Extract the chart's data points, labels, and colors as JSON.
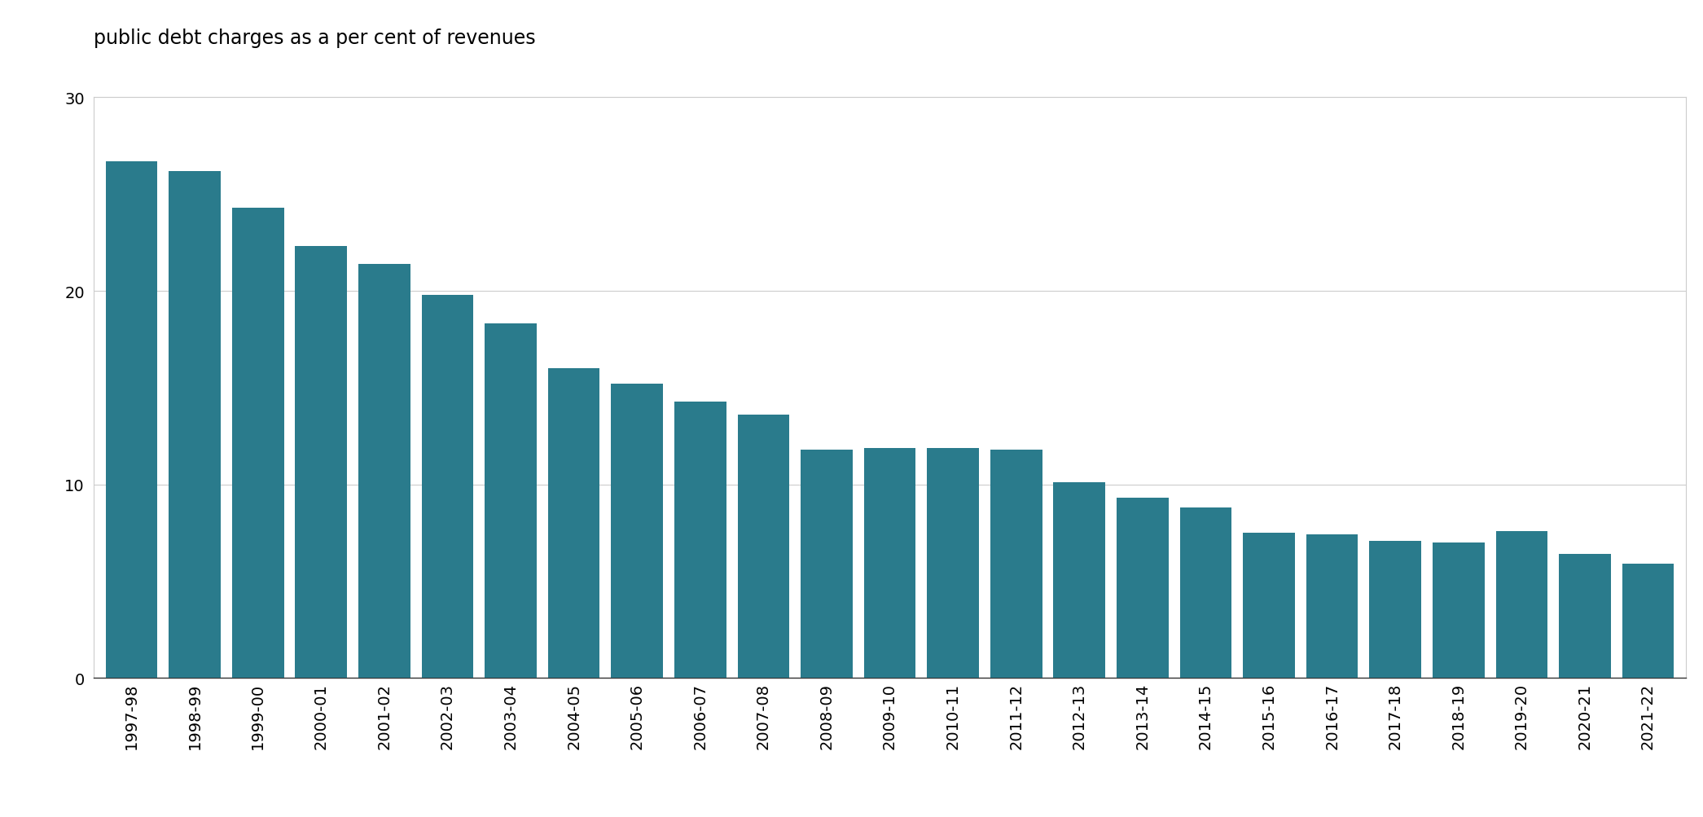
{
  "categories": [
    "1997-98",
    "1998-99",
    "1999-00",
    "2000-01",
    "2001-02",
    "2002-03",
    "2003-04",
    "2004-05",
    "2005-06",
    "2006-07",
    "2007-08",
    "2008-09",
    "2009-10",
    "2010-11",
    "2011-12",
    "2012-13",
    "2013-14",
    "2014-15",
    "2015-16",
    "2016-17",
    "2017-18",
    "2018-19",
    "2019-20",
    "2020-21",
    "2021-22"
  ],
  "values": [
    26.7,
    26.2,
    24.3,
    22.3,
    21.4,
    19.8,
    18.3,
    16.0,
    15.2,
    14.3,
    13.6,
    11.8,
    11.9,
    11.9,
    11.8,
    10.1,
    9.3,
    8.8,
    7.5,
    7.4,
    7.1,
    7.0,
    7.6,
    6.4,
    5.9
  ],
  "bar_color": "#2a7b8c",
  "title": "public debt charges as a per cent of revenues",
  "title_fontsize": 17,
  "ylim": [
    0,
    30
  ],
  "yticks": [
    0,
    10,
    20,
    30
  ],
  "background_color": "#ffffff",
  "grid_color": "#cccccc",
  "tick_label_fontsize": 14,
  "title_color": "#000000",
  "bar_width": 0.82
}
